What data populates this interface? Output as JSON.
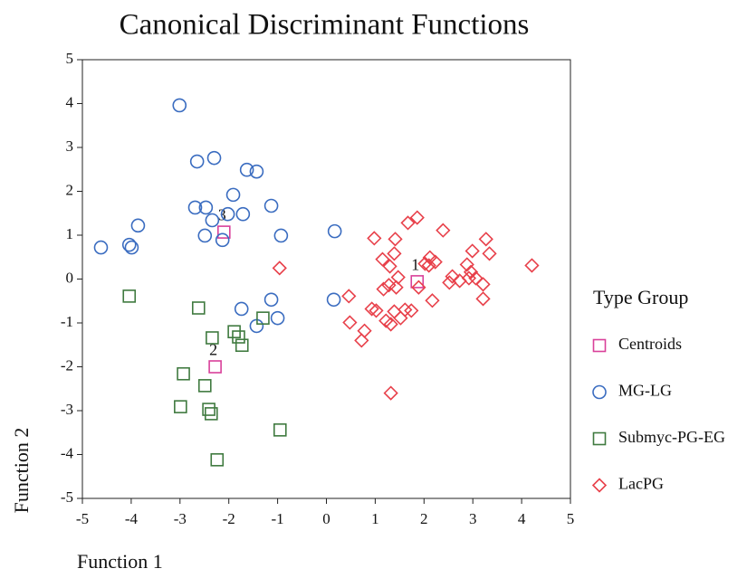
{
  "chart_data": {
    "type": "scatter",
    "title": "Canonical Discriminant Functions",
    "x_label": "Function 1",
    "y_label": "Function 2",
    "legend_title": "Type Group",
    "legend_position": "right",
    "grid": false,
    "xlim": [
      -5,
      5
    ],
    "ylim": [
      -5,
      5
    ],
    "xticks": [
      -5,
      -4,
      -3,
      -2,
      -1,
      0,
      1,
      2,
      3,
      4,
      5
    ],
    "yticks": [
      -5,
      -4,
      -3,
      -2,
      -1,
      0,
      1,
      2,
      3,
      4,
      5
    ],
    "series": [
      {
        "name": "Centroids",
        "color": "#d9409a",
        "marker": "square",
        "x": [
          1.86,
          -2.28,
          -2.1
        ],
        "y": [
          -0.06,
          -2.0,
          1.07
        ],
        "point_labels": [
          "1",
          "2",
          "3"
        ]
      },
      {
        "name": "MG-LG",
        "color": "#3a6cc0",
        "marker": "circle",
        "x": [
          -3.01,
          -2.65,
          -2.3,
          -1.63,
          -1.43,
          -1.91,
          -2.69,
          -2.47,
          -1.13,
          -2.02,
          -1.71,
          -2.34,
          -3.86,
          -2.49,
          -2.13,
          0.17,
          -0.93,
          -4.62,
          -4.04,
          -3.99,
          -1.13,
          0.15,
          -1.74,
          -1.0,
          -1.43
        ],
        "y": [
          3.96,
          2.68,
          2.76,
          2.49,
          2.45,
          1.92,
          1.63,
          1.63,
          1.67,
          1.48,
          1.48,
          1.34,
          1.22,
          0.99,
          0.89,
          1.09,
          0.99,
          0.72,
          0.78,
          0.72,
          -0.47,
          -0.47,
          -0.68,
          -0.89,
          -1.07
        ]
      },
      {
        "name": "Submyc-PG-EG",
        "color": "#3f7a3f",
        "marker": "square",
        "x": [
          -4.04,
          -2.62,
          -1.3,
          -1.89,
          -1.8,
          -1.73,
          -2.34,
          -2.93,
          -2.49,
          -2.99,
          -2.41,
          -2.36,
          -0.95,
          -2.24
        ],
        "y": [
          -0.39,
          -0.66,
          -0.89,
          -1.2,
          -1.32,
          -1.51,
          -1.34,
          -2.16,
          -2.43,
          -2.91,
          -2.97,
          -3.07,
          -3.44,
          -4.12
        ]
      },
      {
        "name": "LacPG",
        "color": "#e8404a",
        "marker": "diamond",
        "x": [
          1.86,
          1.67,
          0.98,
          2.39,
          1.41,
          3.27,
          2.99,
          3.34,
          4.21,
          2.12,
          1.39,
          1.15,
          2.23,
          2.02,
          2.1,
          1.3,
          2.88,
          2.96,
          2.92,
          3.06,
          2.73,
          2.52,
          2.58,
          1.47,
          1.89,
          3.21,
          1.17,
          1.43,
          1.28,
          -0.96,
          0.46,
          2.17,
          3.21,
          1.39,
          1.61,
          1.74,
          0.93,
          1.02,
          1.22,
          1.32,
          1.52,
          0.48,
          0.78,
          0.72,
          1.32
        ],
        "y": [
          1.4,
          1.28,
          0.93,
          1.11,
          0.91,
          0.91,
          0.64,
          0.58,
          0.31,
          0.49,
          0.58,
          0.45,
          0.39,
          0.35,
          0.31,
          0.29,
          0.33,
          0.16,
          0.02,
          0.02,
          -0.04,
          -0.08,
          0.06,
          0.04,
          -0.19,
          -0.12,
          -0.23,
          -0.19,
          -0.14,
          0.25,
          -0.39,
          -0.49,
          -0.45,
          -0.74,
          -0.7,
          -0.72,
          -0.68,
          -0.72,
          -0.95,
          -1.03,
          -0.89,
          -0.99,
          -1.18,
          -1.4,
          -2.6
        ]
      }
    ]
  }
}
